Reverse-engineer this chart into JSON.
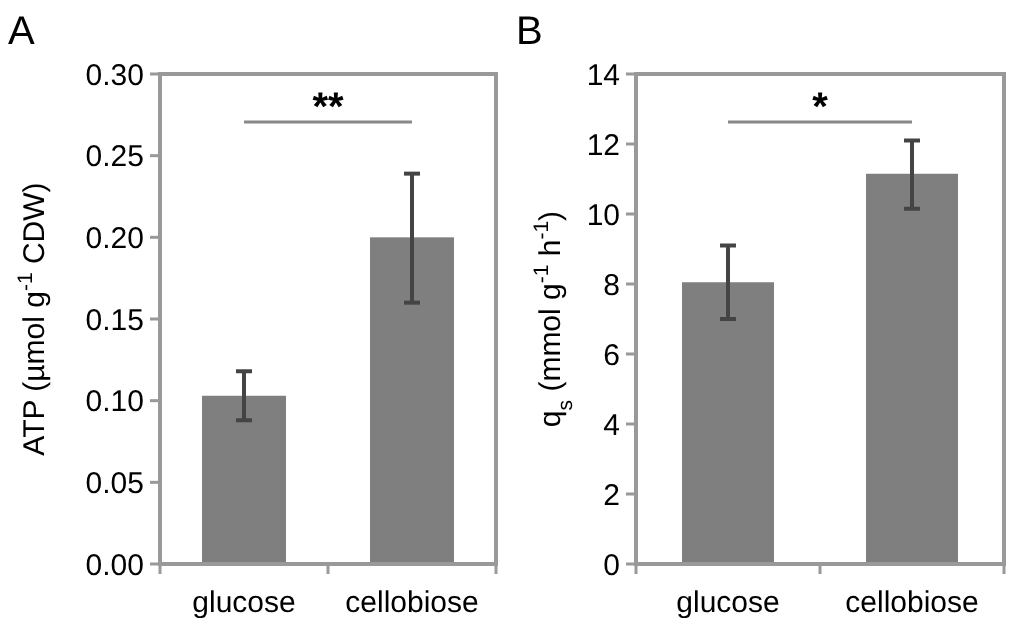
{
  "chart_data": [
    {
      "type": "bar",
      "title": "A",
      "ylabel": "ATP (µmol g$^{-1}$ CDW)",
      "categories": [
        "glucose",
        "cellobiose"
      ],
      "values": [
        0.103,
        0.2
      ],
      "errors": [
        [
          0.088,
          0.118
        ],
        [
          0.16,
          0.239
        ]
      ],
      "color": "#7f7f7f",
      "ylim": [
        0,
        0.3
      ],
      "yticks": [
        {
          "value": 0,
          "label": "0.00"
        },
        {
          "value": 0.05,
          "label": "0.05"
        },
        {
          "value": 0.1,
          "label": "0.10"
        },
        {
          "value": 0.15,
          "label": "0.15"
        },
        {
          "value": 0.2,
          "label": "0.20"
        },
        {
          "value": 0.25,
          "label": "0.25"
        },
        {
          "value": 0.3,
          "label": "0.30"
        }
      ],
      "annotations": [
        "**"
      ]
    },
    {
      "type": "bar",
      "title": "B",
      "ylabel": "q$_{s}$ (mmol g$^{-1}$ h$^{-1}$)",
      "categories": [
        "glucose",
        "cellobiose"
      ],
      "values": [
        8.05,
        11.15
      ],
      "errors": [
        [
          7.0,
          9.1
        ],
        [
          10.15,
          12.1
        ]
      ],
      "color": "#7f7f7f",
      "ylim": [
        0,
        14
      ],
      "yticks": [
        0,
        2,
        4,
        6,
        8,
        10,
        12,
        14
      ],
      "annotations": [
        "*"
      ]
    }
  ]
}
